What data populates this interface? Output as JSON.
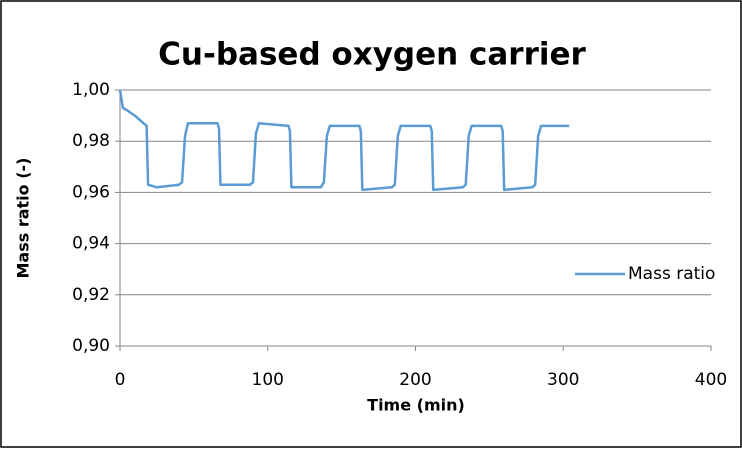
{
  "chart_data": {
    "type": "line",
    "title": "Cu-based oxygen carrier",
    "x_label": "Time (min)",
    "y_label": "Mass ratio (-)",
    "series": [
      {
        "name": "Mass ratio",
        "color": "#5b9bd5",
        "x": [
          0,
          2,
          5,
          10,
          16,
          18,
          19,
          25,
          40,
          42,
          44,
          46,
          66,
          67,
          68,
          88,
          90,
          92,
          94,
          114,
          115,
          116,
          136,
          138,
          140,
          142,
          162,
          163,
          164,
          184,
          186,
          188,
          190,
          210,
          211,
          212,
          232,
          234,
          236,
          238,
          258,
          259,
          260,
          279,
          281,
          283,
          285,
          304
        ],
        "values": [
          1.0,
          0.993,
          0.992,
          0.99,
          0.987,
          0.986,
          0.963,
          0.962,
          0.963,
          0.964,
          0.982,
          0.987,
          0.987,
          0.985,
          0.963,
          0.963,
          0.964,
          0.983,
          0.987,
          0.986,
          0.984,
          0.962,
          0.962,
          0.964,
          0.982,
          0.986,
          0.986,
          0.984,
          0.961,
          0.962,
          0.963,
          0.982,
          0.986,
          0.986,
          0.984,
          0.961,
          0.962,
          0.963,
          0.982,
          0.986,
          0.986,
          0.984,
          0.961,
          0.962,
          0.963,
          0.982,
          0.986,
          0.986
        ]
      }
    ],
    "xlim": [
      0,
      400
    ],
    "xticks": [
      0,
      100,
      200,
      300,
      400
    ],
    "ylim": [
      0.9,
      1.0
    ],
    "yticks": [
      {
        "value": 0.9,
        "label": "0,90"
      },
      {
        "value": 0.92,
        "label": "0,92"
      },
      {
        "value": 0.94,
        "label": "0,94"
      },
      {
        "value": 0.96,
        "label": "0,96"
      },
      {
        "value": 0.98,
        "label": "0,98"
      },
      {
        "value": 1.0,
        "label": "1,00"
      }
    ],
    "grid": true,
    "legend": "right"
  }
}
